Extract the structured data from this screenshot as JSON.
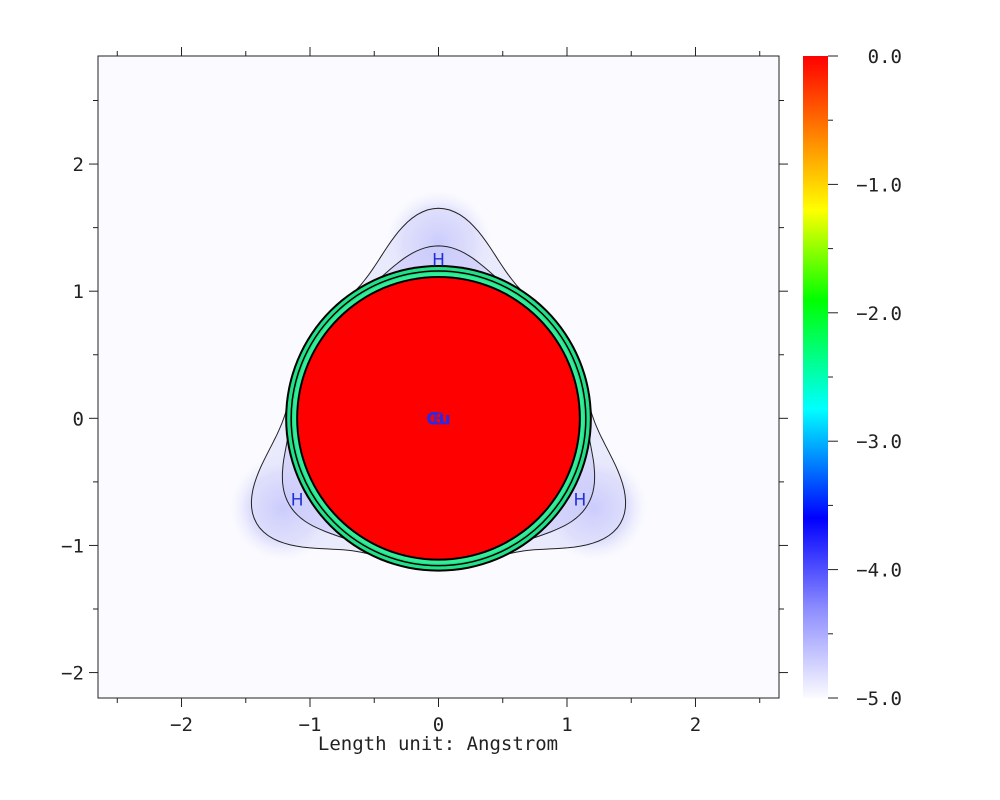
{
  "chart_data": {
    "type": "heatmap",
    "xlabel": "Length unit: Angstrom",
    "xlim": [
      -2.65,
      2.65
    ],
    "ylim": [
      -2.2,
      2.85
    ],
    "x_ticks": [
      -2,
      -1,
      0,
      1,
      2
    ],
    "x_tick_labels": [
      "−2",
      "−1",
      "0",
      "1",
      "2"
    ],
    "y_ticks": [
      -2,
      -1,
      0,
      1,
      2
    ],
    "y_tick_labels": [
      "−2",
      "−1",
      "0",
      "1",
      "2"
    ],
    "colorbar": {
      "range": [
        -5.0,
        0.0
      ],
      "ticks": [
        0.0,
        -1.0,
        -2.0,
        -3.0,
        -4.0,
        -5.0
      ],
      "tick_labels": [
        "0.0",
        "−1.0",
        "−2.0",
        "−3.0",
        "−4.0",
        "−5.0"
      ],
      "colors": [
        "#fbfbff",
        "#8080ff",
        "#0000ff",
        "#00ffff",
        "#00ff00",
        "#ffff00",
        "#ff8000",
        "#ff0000"
      ]
    },
    "atoms": [
      {
        "label": "H",
        "x": 0.0,
        "y": 1.25
      },
      {
        "label": "H",
        "x": -1.1,
        "y": -0.64
      },
      {
        "label": "H",
        "x": 1.1,
        "y": -0.64
      },
      {
        "label": "Cu",
        "x": 0.0,
        "y": 0.0
      },
      {
        "label": "B",
        "x": 0.0,
        "y": 0.0
      }
    ],
    "core_region": {
      "center": [
        0.0,
        0.0
      ],
      "radius": 1.1,
      "value": 0.0
    },
    "background_value": -5.0
  }
}
